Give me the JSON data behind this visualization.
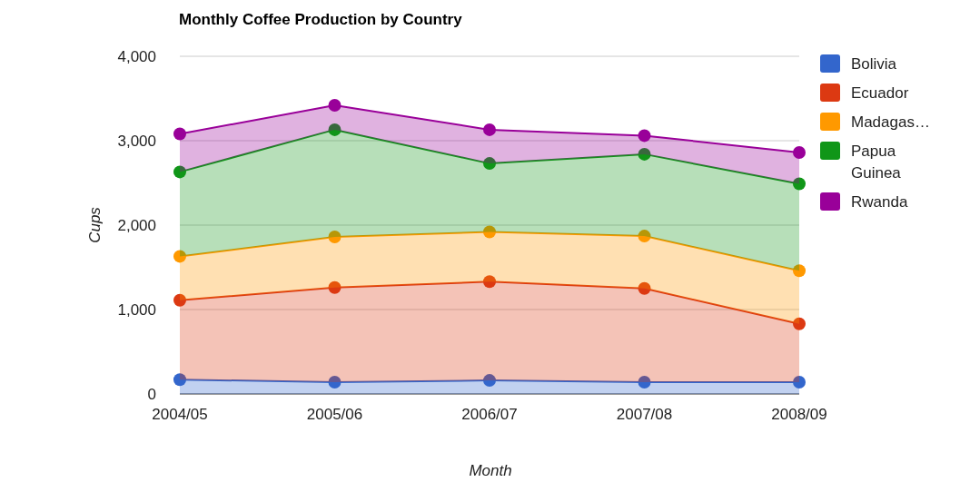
{
  "chart_data": {
    "type": "area",
    "stacked": true,
    "title": "Monthly Coffee Production by Country",
    "xlabel": "Month",
    "ylabel": "Cups",
    "categories": [
      "2004/05",
      "2005/06",
      "2006/07",
      "2007/08",
      "2008/09"
    ],
    "series": [
      {
        "name": "Bolivia",
        "color": "#3366cc",
        "values": [
          170,
          140,
          160,
          140,
          140
        ]
      },
      {
        "name": "Ecuador",
        "color": "#dc3912",
        "values": [
          940,
          1120,
          1170,
          1110,
          690
        ]
      },
      {
        "name": "Madagas…",
        "color": "#ff9900",
        "values": [
          520,
          600,
          590,
          620,
          630
        ]
      },
      {
        "name": "Papua Guinea",
        "color": "#109618",
        "values": [
          1000,
          1270,
          810,
          970,
          1030
        ]
      },
      {
        "name": "Rwanda",
        "color": "#990099",
        "values": [
          450,
          290,
          400,
          220,
          370
        ]
      }
    ],
    "ylim": [
      0,
      4000
    ],
    "yticks": [
      {
        "value": 0,
        "label": "0"
      },
      {
        "value": 1000,
        "label": "1,000"
      },
      {
        "value": 2000,
        "label": "2,000"
      },
      {
        "value": 3000,
        "label": "3,000"
      },
      {
        "value": 4000,
        "label": "4,000"
      }
    ],
    "grid": "y",
    "legend": "right",
    "marker": "circle"
  }
}
